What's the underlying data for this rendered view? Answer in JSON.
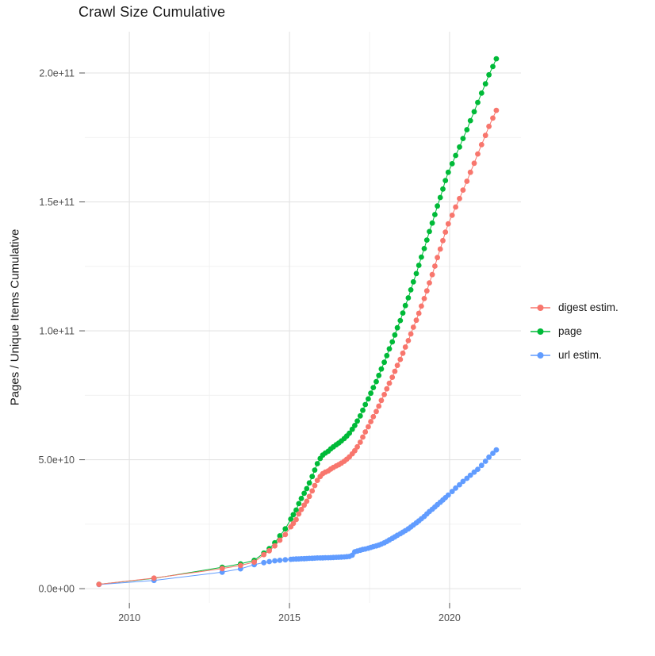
{
  "chart_data": {
    "type": "scatter",
    "title": "Crawl Size Cumulative",
    "ylabel": "Pages / Unique Items Cumulative",
    "xlabel": "",
    "y_unit": "pages, values stored in billions (1e9)",
    "grid": true,
    "legend_position": "right",
    "background_color": "#FFFFFF",
    "major_grid_color": "#E3E3E3",
    "minor_grid_color": "#EFEFEF",
    "tick_color": "#555555",
    "tick_label_color": "#4D4D4D",
    "xlim": [
      2008.61,
      2022.23
    ],
    "ylim_e9": [
      -5.5,
      216
    ],
    "x_ticks": [
      {
        "label": "2010",
        "value": 2010
      },
      {
        "label": "2015",
        "value": 2015
      },
      {
        "label": "2020",
        "value": 2020
      }
    ],
    "x_minor_gridlines": [
      2012.5,
      2017.5
    ],
    "y_ticks": [
      {
        "label": "0.0e+00",
        "value_e9": 0
      },
      {
        "label": "5.0e+10",
        "value_e9": 50
      },
      {
        "label": "1.0e+11",
        "value_e9": 100
      },
      {
        "label": "1.5e+11",
        "value_e9": 150
      },
      {
        "label": "2.0e+11",
        "value_e9": 200
      }
    ],
    "y_minor_gridlines_e9": [
      25,
      75,
      125,
      175
    ],
    "draw_order": [
      1,
      2,
      0
    ],
    "x": [
      2009.05,
      2010.77,
      2012.9,
      2013.47,
      2013.9,
      2014.2,
      2014.37,
      2014.54,
      2014.7,
      2014.87,
      2015.04,
      2015.12,
      2015.21,
      2015.29,
      2015.37,
      2015.46,
      2015.54,
      2015.62,
      2015.71,
      2015.79,
      2015.87,
      2015.96,
      2016.04,
      2016.12,
      2016.21,
      2016.29,
      2016.37,
      2016.46,
      2016.54,
      2016.62,
      2016.71,
      2016.79,
      2016.87,
      2016.96,
      2017.04,
      2017.12,
      2017.21,
      2017.29,
      2017.37,
      2017.46,
      2017.54,
      2017.62,
      2017.71,
      2017.79,
      2017.87,
      2017.96,
      2018.04,
      2018.12,
      2018.21,
      2018.29,
      2018.37,
      2018.46,
      2018.54,
      2018.62,
      2018.71,
      2018.79,
      2018.87,
      2018.96,
      2019.04,
      2019.12,
      2019.21,
      2019.29,
      2019.37,
      2019.46,
      2019.54,
      2019.62,
      2019.71,
      2019.79,
      2019.87,
      2019.96,
      2020.08,
      2020.19,
      2020.31,
      2020.42,
      2020.54,
      2020.65,
      2020.77,
      2020.88,
      2021.0,
      2021.12,
      2021.23,
      2021.35,
      2021.46
    ],
    "series": [
      {
        "name": "digest-estim",
        "label": "digest estim.",
        "color": "#F8766D",
        "values_e9": [
          1.7,
          4.1,
          7.8,
          9.0,
          10.3,
          13.2,
          14.7,
          16.6,
          18.8,
          21.0,
          24.0,
          25.3,
          26.8,
          29.0,
          30.7,
          32.4,
          33.9,
          35.8,
          37.9,
          40.0,
          42.0,
          43.5,
          44.6,
          45.2,
          45.7,
          46.4,
          47.0,
          47.6,
          48.1,
          48.7,
          49.4,
          50.2,
          51.1,
          52.3,
          53.5,
          55.0,
          56.8,
          58.8,
          60.8,
          62.8,
          64.8,
          66.7,
          68.7,
          70.8,
          73.0,
          75.3,
          77.5,
          79.7,
          82.0,
          84.3,
          86.6,
          88.9,
          91.3,
          93.7,
          96.2,
          98.8,
          101.4,
          104.1,
          106.8,
          109.6,
          112.5,
          115.5,
          118.6,
          121.8,
          125.1,
          128.4,
          131.7,
          135.0,
          138.3,
          141.5,
          144.8,
          148.0,
          151.3,
          154.6,
          158.0,
          161.5,
          165.0,
          168.6,
          172.2,
          175.8,
          179.3,
          182.5,
          185.5
        ]
      },
      {
        "name": "page",
        "label": "page",
        "color": "#00BA38",
        "values_e9": [
          1.7,
          4.0,
          8.3,
          9.6,
          11.0,
          13.8,
          15.5,
          17.8,
          20.5,
          23.2,
          27.0,
          28.7,
          30.5,
          33.0,
          35.0,
          37.0,
          38.8,
          41.0,
          43.5,
          46.0,
          48.5,
          50.5,
          51.8,
          52.6,
          53.3,
          54.2,
          55.0,
          55.8,
          56.5,
          57.3,
          58.2,
          59.2,
          60.3,
          61.8,
          63.3,
          65.0,
          67.0,
          69.2,
          71.4,
          73.6,
          75.8,
          78.0,
          80.3,
          82.7,
          85.2,
          87.8,
          90.4,
          93.0,
          95.7,
          98.4,
          101.2,
          104.0,
          106.9,
          109.8,
          112.8,
          115.9,
          119.0,
          122.2,
          125.4,
          128.6,
          131.9,
          135.2,
          138.5,
          141.8,
          145.1,
          148.4,
          151.7,
          155.0,
          158.3,
          161.5,
          164.8,
          168.0,
          171.3,
          174.6,
          178.0,
          181.5,
          185.0,
          188.6,
          192.2,
          195.8,
          199.3,
          202.5,
          205.5
        ]
      },
      {
        "name": "url-estim",
        "label": "url estim.",
        "color": "#619CFF",
        "values_e9": [
          1.6,
          3.2,
          6.4,
          7.7,
          9.3,
          10.1,
          10.5,
          10.8,
          11.0,
          11.2,
          11.4,
          11.45,
          11.5,
          11.55,
          11.6,
          11.65,
          11.7,
          11.75,
          11.8,
          11.85,
          11.9,
          11.9,
          11.95,
          12.0,
          12.0,
          12.05,
          12.1,
          12.15,
          12.2,
          12.25,
          12.3,
          12.4,
          12.5,
          13.0,
          14.3,
          14.6,
          14.9,
          15.2,
          15.4,
          15.7,
          16.0,
          16.3,
          16.6,
          16.9,
          17.3,
          17.8,
          18.3,
          18.9,
          19.5,
          20.1,
          20.7,
          21.3,
          21.9,
          22.5,
          23.2,
          23.9,
          24.7,
          25.5,
          26.3,
          27.1,
          28.0,
          29.0,
          29.9,
          30.8,
          31.7,
          32.6,
          33.5,
          34.4,
          35.3,
          36.3,
          37.7,
          39.0,
          40.3,
          41.6,
          42.8,
          44.0,
          45.2,
          46.3,
          47.8,
          49.4,
          51.0,
          52.5,
          53.8
        ]
      }
    ]
  }
}
